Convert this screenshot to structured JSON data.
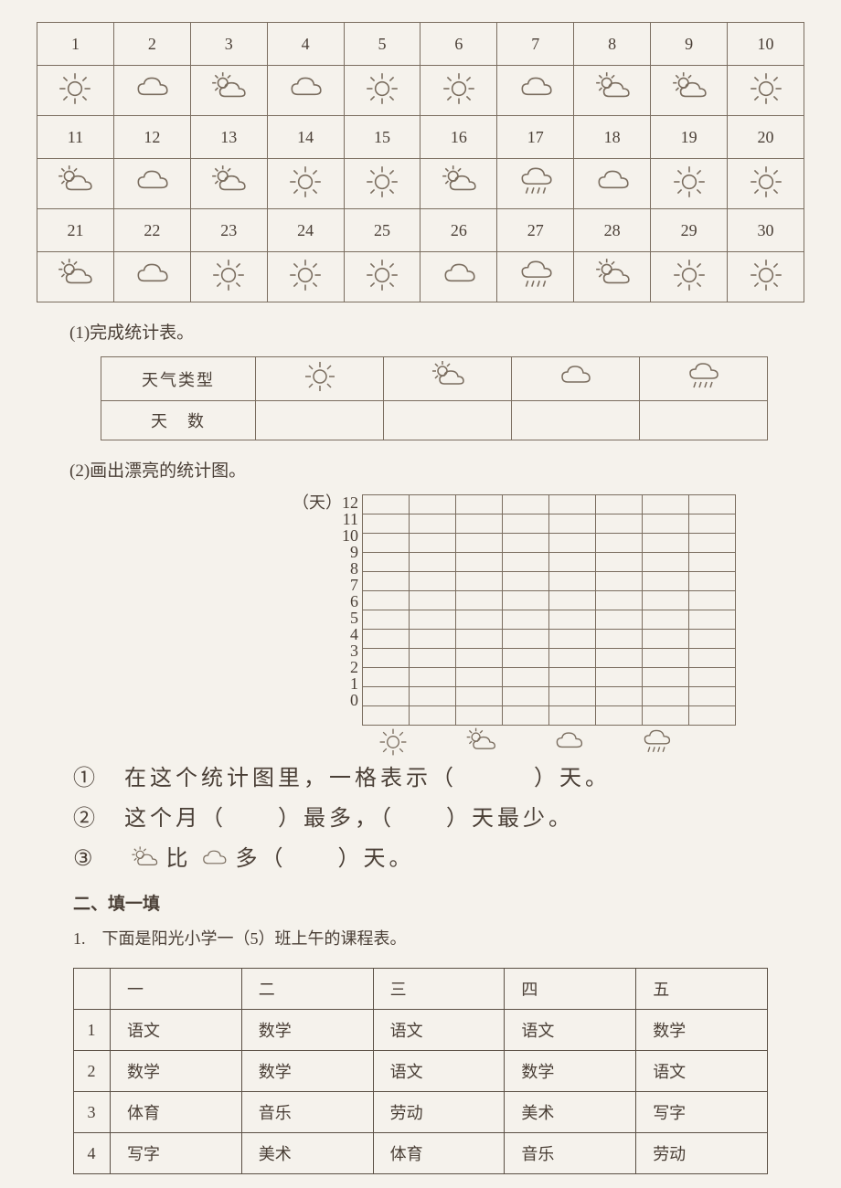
{
  "calendar": {
    "days": [
      {
        "n": "1",
        "w": "sun"
      },
      {
        "n": "2",
        "w": "cloud"
      },
      {
        "n": "3",
        "w": "partly"
      },
      {
        "n": "4",
        "w": "cloud"
      },
      {
        "n": "5",
        "w": "sun"
      },
      {
        "n": "6",
        "w": "sun"
      },
      {
        "n": "7",
        "w": "cloud"
      },
      {
        "n": "8",
        "w": "partly"
      },
      {
        "n": "9",
        "w": "partly"
      },
      {
        "n": "10",
        "w": "sun"
      },
      {
        "n": "11",
        "w": "partly"
      },
      {
        "n": "12",
        "w": "cloud"
      },
      {
        "n": "13",
        "w": "partly"
      },
      {
        "n": "14",
        "w": "sun"
      },
      {
        "n": "15",
        "w": "sun"
      },
      {
        "n": "16",
        "w": "partly"
      },
      {
        "n": "17",
        "w": "rain"
      },
      {
        "n": "18",
        "w": "cloud"
      },
      {
        "n": "19",
        "w": "sun"
      },
      {
        "n": "20",
        "w": "sun"
      },
      {
        "n": "21",
        "w": "partly"
      },
      {
        "n": "22",
        "w": "cloud"
      },
      {
        "n": "23",
        "w": "sun"
      },
      {
        "n": "24",
        "w": "sun"
      },
      {
        "n": "25",
        "w": "sun"
      },
      {
        "n": "26",
        "w": "cloud"
      },
      {
        "n": "27",
        "w": "rain"
      },
      {
        "n": "28",
        "w": "partly"
      },
      {
        "n": "29",
        "w": "sun"
      },
      {
        "n": "30",
        "w": "sun"
      }
    ]
  },
  "q1_label": "(1)完成统计表。",
  "stats": {
    "row1_label": "天气类型",
    "row2_label": "天　数",
    "cols": [
      "sun",
      "partly",
      "cloud",
      "rain"
    ]
  },
  "q2_label": "(2)画出漂亮的统计图。",
  "chart": {
    "y_unit_label": "（天）",
    "y_ticks": [
      "12",
      "11",
      "10",
      "9",
      "8",
      "7",
      "6",
      "5",
      "4",
      "3",
      "2",
      "1",
      "0"
    ],
    "x_icons": [
      "sun",
      "partly",
      "cloud",
      "rain"
    ],
    "cols": 8,
    "rows": 12
  },
  "fill": {
    "l1_a": "①　在这个统计图里，一格表示（",
    "l1_b": "）天。",
    "l2_a": "②　这个月（",
    "l2_b": "）最多，（",
    "l2_c": "）天最少。",
    "l3_a": "③　",
    "l3_b": "比",
    "l3_c": "多（",
    "l3_d": "）天。"
  },
  "section2_title": "二、填一填",
  "schedule_intro": "1.　下面是阳光小学一（5）班上午的课程表。",
  "schedule": {
    "headers": [
      "",
      "一",
      "二",
      "三",
      "四",
      "五"
    ],
    "rows": [
      [
        "1",
        "语文",
        "数学",
        "语文",
        "语文",
        "数学"
      ],
      [
        "2",
        "数学",
        "数学",
        "语文",
        "数学",
        "语文"
      ],
      [
        "3",
        "体育",
        "音乐",
        "劳动",
        "美术",
        "写字"
      ],
      [
        "4",
        "写字",
        "美术",
        "体育",
        "音乐",
        "劳动"
      ]
    ]
  },
  "colors": {
    "stroke": "#7a6d5f",
    "bg": "#f5f2ec",
    "text": "#4a3f36"
  }
}
